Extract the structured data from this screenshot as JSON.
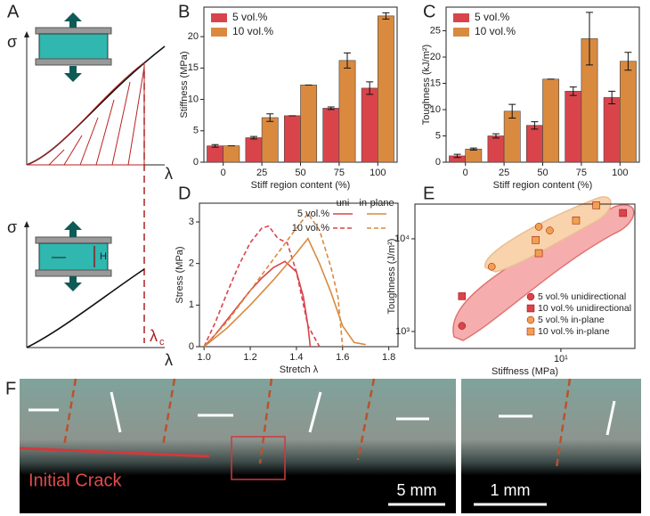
{
  "chart_data": [
    {
      "type": "bar",
      "ylabel": "Stiffness (MPa)",
      "xlabel": "Stiff region content (%)",
      "categories": [
        "0",
        "25",
        "50",
        "75",
        "100"
      ],
      "series": [
        {
          "name": "5 vol.%",
          "color": "#d9444b",
          "values": [
            2.6,
            3.9,
            7.4,
            8.6,
            11.8
          ],
          "errors": [
            0.2,
            0.2,
            0,
            0.2,
            1.0
          ]
        },
        {
          "name": "10 vol.%",
          "color": "#d98a3f",
          "values": [
            2.6,
            7.1,
            12.3,
            16.2,
            23.3
          ],
          "errors": [
            0,
            0.6,
            0,
            1.2,
            0.5
          ]
        }
      ],
      "ylim": [
        0,
        24.7
      ],
      "yticks": [
        0,
        5,
        10,
        15,
        20
      ],
      "legend": "upper left"
    },
    {
      "type": "bar",
      "ylabel": "Toughness (kJ/m²)",
      "xlabel": "Stiff region content (%)",
      "categories": [
        "0",
        "25",
        "50",
        "75",
        "100"
      ],
      "series": [
        {
          "name": "5 vol.%",
          "color": "#d9444b",
          "values": [
            1.2,
            5.0,
            7.0,
            13.5,
            12.3
          ],
          "errors": [
            0.3,
            0.4,
            0.7,
            0.8,
            1.2
          ]
        },
        {
          "name": "10 vol.%",
          "color": "#d98a3f",
          "values": [
            2.5,
            9.7,
            15.8,
            23.5,
            19.2
          ],
          "errors": [
            0.2,
            1.3,
            0,
            5.0,
            1.7
          ]
        }
      ],
      "ylim": [
        0,
        29.5
      ],
      "yticks": [
        0,
        5,
        10,
        15,
        20,
        25
      ],
      "legend": "upper left"
    },
    {
      "type": "line",
      "ylabel": "Stress (MPa)",
      "xlabel": "Stretch λ",
      "legend_columns": [
        "uni",
        "in-plane"
      ],
      "legend_rows": [
        "5 vol.%",
        "10 vol.%"
      ],
      "series": [
        {
          "color": "#d9444b",
          "dash": false,
          "row": 0,
          "column": 0,
          "x": [
            1.0,
            1.05,
            1.1,
            1.15,
            1.2,
            1.25,
            1.3,
            1.35,
            1.4,
            1.43,
            1.45,
            1.46
          ],
          "values": [
            0,
            0.3,
            0.65,
            1.0,
            1.35,
            1.65,
            1.9,
            2.05,
            1.8,
            1.2,
            0.5,
            0
          ]
        },
        {
          "color": "#d9444b",
          "dash": true,
          "row": 1,
          "column": 0,
          "x": [
            1.0,
            1.05,
            1.1,
            1.15,
            1.2,
            1.25,
            1.28,
            1.32,
            1.36,
            1.4,
            1.45,
            1.5
          ],
          "values": [
            0,
            0.6,
            1.3,
            1.95,
            2.5,
            2.85,
            2.9,
            2.6,
            2.5,
            1.8,
            0.5,
            0
          ]
        },
        {
          "color": "#d98a3f",
          "dash": false,
          "row": 0,
          "column": 1,
          "x": [
            1.0,
            1.1,
            1.2,
            1.3,
            1.4,
            1.45,
            1.5,
            1.55,
            1.6,
            1.65,
            1.7
          ],
          "values": [
            0,
            0.45,
            1.0,
            1.6,
            2.25,
            2.6,
            2.0,
            1.3,
            0.5,
            0.1,
            0.05
          ]
        },
        {
          "color": "#d98a3f",
          "dash": true,
          "row": 1,
          "column": 1,
          "x": [
            1.0,
            1.1,
            1.2,
            1.3,
            1.4,
            1.45,
            1.5,
            1.55,
            1.58,
            1.6
          ],
          "values": [
            0,
            0.6,
            1.35,
            2.1,
            2.85,
            3.2,
            2.8,
            1.9,
            1.2,
            0
          ]
        }
      ],
      "xlim": [
        0.98,
        1.84
      ],
      "xticks": [
        {
          "value": 1.0,
          "label": "1.0"
        },
        1.2,
        1.4,
        1.6,
        1.8
      ],
      "ylim": [
        0,
        3.45
      ],
      "yticks": [
        0,
        1,
        2,
        3
      ]
    },
    {
      "type": "scatter",
      "ylabel": "Toughness (J/m²)",
      "xlabel": "Stiffness (MPa)",
      "xscale": "log",
      "yscale": "log",
      "series": [
        {
          "name": "5 vol.% unidirectional",
          "color": "#d9444b",
          "marker": "circle",
          "x": [
            2.6
          ],
          "values": [
            1150
          ]
        },
        {
          "name": "10 vol.% unidirectional",
          "color": "#d9444b",
          "marker": "square",
          "x": [
            2.6,
            23.3
          ],
          "values": [
            2400,
            19000
          ]
        },
        {
          "name": "5 vol.% in-plane",
          "color": "#f0a050",
          "marker": "circle",
          "x": [
            3.9,
            7.4,
            8.6
          ],
          "values": [
            5000,
            13500,
            12300
          ]
        },
        {
          "name": "10 vol.% in-plane",
          "color": "#f0a050",
          "marker": "square",
          "x": [
            7.1,
            7.4,
            12.3,
            16.2
          ],
          "values": [
            9700,
            7000,
            15800,
            23000
          ]
        }
      ],
      "xlim": [
        1.37,
        27.4
      ],
      "xticks": [
        {
          "value": 10,
          "label": "10¹"
        }
      ],
      "ylim": [
        656,
        23700
      ],
      "yticks": [
        {
          "value": 1000,
          "label": "10³"
        },
        {
          "value": 10000,
          "label": "10⁴"
        }
      ],
      "legend": "lower right"
    }
  ],
  "panels": {
    "letters": [
      "A",
      "B",
      "C",
      "D",
      "E",
      "F"
    ],
    "a": {
      "sigma_top": "σ",
      "lambda_top": "λ",
      "sigma_bottom": "σ",
      "height": "H",
      "lambda_c": "λ",
      "lambda_c_sub": "c",
      "lambda_bottom": "λ"
    },
    "f": {
      "crack": "Initial Crack",
      "scale_left": "5 mm",
      "scale_right": "1 mm"
    }
  }
}
